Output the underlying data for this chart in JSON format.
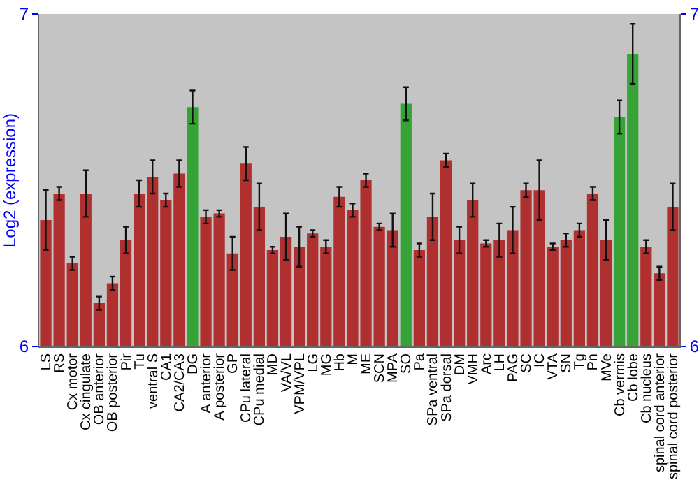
{
  "chart_data": {
    "type": "bar",
    "ylabel": "Log2 (expression)",
    "categories": [
      "LS",
      "RS",
      "Cx motor",
      "Cx cingulate",
      "OB anterior",
      "OB posterior",
      "Pir",
      "Tu",
      "ventral S",
      "CA1",
      "CA2/CA3",
      "DG",
      "A anterior",
      "A posterior",
      "GP",
      "CPu lateral",
      "CPu medial",
      "MD",
      "VA/VL",
      "VPM/VPL",
      "LG",
      "MG",
      "Hb",
      "M",
      "ME",
      "SCN",
      "MPA",
      "SO",
      "Pa",
      "SPa ventral",
      "SPa dorsal",
      "DM",
      "VMH",
      "Arc",
      "LH",
      "PAG",
      "SC",
      "IC",
      "VTA",
      "SN",
      "Tg",
      "Pn",
      "MVe",
      "Cb vermis",
      "Cb lobe",
      "Cb nucleus",
      "spinal cord anterior",
      "spinal cord posterior"
    ],
    "values": [
      6.38,
      6.46,
      6.25,
      6.46,
      6.13,
      6.19,
      6.32,
      6.46,
      6.51,
      6.44,
      6.52,
      6.72,
      6.39,
      6.4,
      6.28,
      6.55,
      6.42,
      6.29,
      6.33,
      6.3,
      6.34,
      6.3,
      6.45,
      6.41,
      6.5,
      6.36,
      6.35,
      6.73,
      6.29,
      6.39,
      6.56,
      6.32,
      6.44,
      6.31,
      6.32,
      6.35,
      6.47,
      6.47,
      6.3,
      6.32,
      6.35,
      6.46,
      6.32,
      6.69,
      6.88,
      6.3,
      6.22,
      6.42
    ],
    "errors": [
      0.09,
      0.02,
      0.02,
      0.07,
      0.02,
      0.02,
      0.04,
      0.04,
      0.05,
      0.02,
      0.04,
      0.05,
      0.02,
      0.01,
      0.05,
      0.05,
      0.07,
      0.01,
      0.07,
      0.06,
      0.01,
      0.02,
      0.03,
      0.02,
      0.02,
      0.01,
      0.05,
      0.05,
      0.02,
      0.07,
      0.02,
      0.04,
      0.05,
      0.01,
      0.05,
      0.07,
      0.02,
      0.09,
      0.01,
      0.02,
      0.02,
      0.02,
      0.06,
      0.05,
      0.09,
      0.02,
      0.02,
      0.07
    ],
    "colors": [
      "#b03030",
      "#b03030",
      "#b03030",
      "#b03030",
      "#b03030",
      "#b03030",
      "#b03030",
      "#b03030",
      "#b03030",
      "#b03030",
      "#b03030",
      "#36a336",
      "#b03030",
      "#b03030",
      "#b03030",
      "#b03030",
      "#b03030",
      "#b03030",
      "#b03030",
      "#b03030",
      "#b03030",
      "#b03030",
      "#b03030",
      "#b03030",
      "#b03030",
      "#b03030",
      "#b03030",
      "#36a336",
      "#b03030",
      "#b03030",
      "#b03030",
      "#b03030",
      "#b03030",
      "#b03030",
      "#b03030",
      "#b03030",
      "#b03030",
      "#b03030",
      "#b03030",
      "#b03030",
      "#b03030",
      "#b03030",
      "#b03030",
      "#36a336",
      "#36a336",
      "#b03030",
      "#b03030",
      "#b03030"
    ],
    "ylim": [
      6,
      7
    ],
    "yticks": [
      6,
      7
    ],
    "y2lim": [
      6,
      7
    ],
    "y2ticks": [
      6,
      7
    ]
  }
}
